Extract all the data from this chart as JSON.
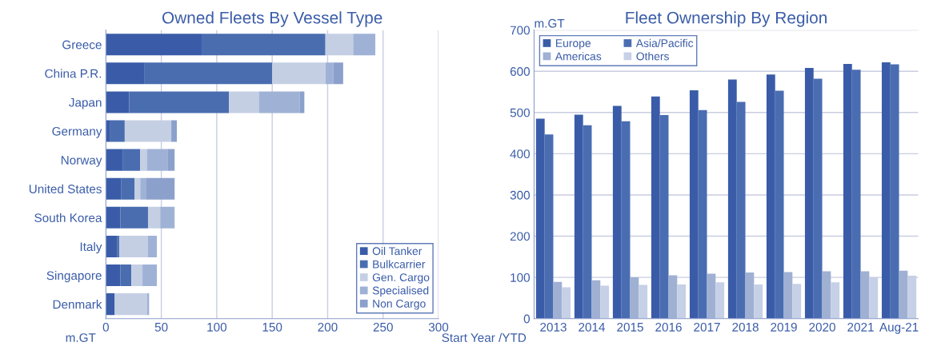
{
  "chart_data": [
    {
      "type": "bar",
      "title": "Owned Fleets By Vessel Type",
      "orientation": "horizontal",
      "stacked": true,
      "xlabel": "m.GT",
      "categories": [
        "Greece",
        "China P.R.",
        "Japan",
        "Germany",
        "Norway",
        "United States",
        "South Korea",
        "Italy",
        "Singapore",
        "Denmark"
      ],
      "series": [
        {
          "name": "Oil Tanker",
          "color": "#3a5ca8",
          "values": [
            87,
            35,
            21,
            4,
            15,
            14,
            13,
            10,
            13,
            8
          ]
        },
        {
          "name": "Bulkcarrier",
          "color": "#4a6db0",
          "values": [
            111,
            115,
            90,
            13,
            16,
            12,
            25,
            2,
            10,
            0
          ]
        },
        {
          "name": "Gen. Cargo",
          "color": "#c5cfe4",
          "values": [
            25,
            48,
            27,
            42,
            6,
            5,
            11,
            26,
            10,
            29
          ]
        },
        {
          "name": "Specialised",
          "color": "#9fb2d6",
          "values": [
            20,
            7,
            37,
            0,
            19,
            5,
            13,
            8,
            13,
            2
          ]
        },
        {
          "name": "Non Cargo",
          "color": "#8ca0cc",
          "values": [
            0,
            9,
            4,
            5,
            6,
            26,
            0,
            0,
            0,
            0
          ]
        }
      ],
      "xlim": [
        0,
        300
      ],
      "xticks": [
        0,
        50,
        100,
        150,
        200,
        250,
        300
      ],
      "grid": "x",
      "legend": "bottom right"
    },
    {
      "type": "bar",
      "title": "Fleet Ownership By Region",
      "ylabel": "m.GT",
      "xlabel": "Start Year /YTD",
      "categories": [
        "2013",
        "2014",
        "2015",
        "2016",
        "2017",
        "2018",
        "2019",
        "2020",
        "2021",
        "Aug-21"
      ],
      "series": [
        {
          "name": "Europe",
          "color": "#3a5ca8",
          "values": [
            485,
            495,
            516,
            539,
            554,
            580,
            592,
            608,
            618,
            622
          ]
        },
        {
          "name": "Asia/Pacific",
          "color": "#4a6db2",
          "values": [
            447,
            469,
            479,
            494,
            506,
            526,
            553,
            582,
            604,
            617
          ]
        },
        {
          "name": "Americas",
          "color": "#9fb0d3",
          "values": [
            89,
            93,
            100,
            105,
            109,
            112,
            113,
            115,
            115,
            116
          ]
        },
        {
          "name": "Others",
          "color": "#c6d0e6",
          "values": [
            76,
            80,
            82,
            83,
            88,
            83,
            84,
            88,
            100,
            104
          ]
        }
      ],
      "ylim": [
        0,
        700
      ],
      "yticks": [
        0,
        100,
        200,
        300,
        400,
        500,
        600,
        700
      ],
      "grid": "y",
      "legend": "top left"
    }
  ]
}
